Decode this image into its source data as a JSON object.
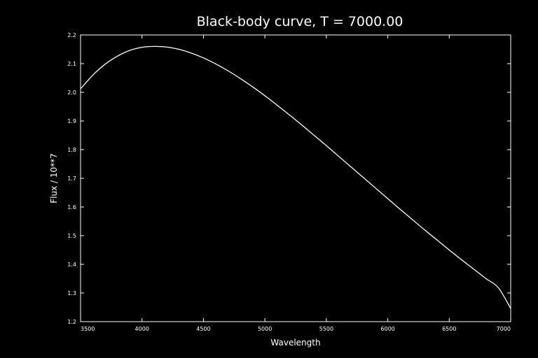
{
  "chart_data": {
    "type": "line",
    "title": "Black-body curve, T = 7000.00",
    "xlabel": "Wavelength",
    "ylabel": "Flux / 10**7",
    "xlim": [
      3500,
      7000
    ],
    "ylim": [
      1.2,
      2.2
    ],
    "xticks": [
      3500,
      4000,
      4500,
      5000,
      5500,
      6000,
      6500,
      7000
    ],
    "yticks": [
      1.2,
      1.3,
      1.4,
      1.5,
      1.6,
      1.7,
      1.8,
      1.9,
      2.0,
      2.1,
      2.2
    ],
    "xtick_labels": [
      "3500",
      "4000",
      "4500",
      "5000",
      "5500",
      "6000",
      "6500",
      "7000"
    ],
    "ytick_labels": [
      "1.2",
      "1.3",
      "1.4",
      "1.5",
      "1.6",
      "1.7",
      "1.8",
      "1.9",
      "2.0",
      "2.1",
      "2.2"
    ],
    "grid": false,
    "legend": "none",
    "colors": {
      "background": "#000000",
      "foreground": "#ffffff",
      "line": "#ffffff"
    },
    "series": [
      {
        "x": [
          3500,
          3600,
          3700,
          3800,
          3900,
          4000,
          4100,
          4200,
          4300,
          4400,
          4500,
          4600,
          4700,
          4800,
          4900,
          5000,
          5100,
          5200,
          5300,
          5400,
          5500,
          5600,
          5700,
          5800,
          5900,
          6000,
          6100,
          6200,
          6300,
          6400,
          6500,
          6600,
          6700,
          6800,
          6900,
          7000
        ],
        "y": [
          2.012,
          2.06,
          2.098,
          2.126,
          2.146,
          2.157,
          2.16,
          2.158,
          2.15,
          2.137,
          2.12,
          2.099,
          2.075,
          2.048,
          2.019,
          1.988,
          1.955,
          1.921,
          1.886,
          1.85,
          1.814,
          1.777,
          1.74,
          1.703,
          1.666,
          1.629,
          1.592,
          1.556,
          1.52,
          1.485,
          1.45,
          1.416,
          1.383,
          1.35,
          1.318,
          1.246
        ]
      }
    ]
  }
}
